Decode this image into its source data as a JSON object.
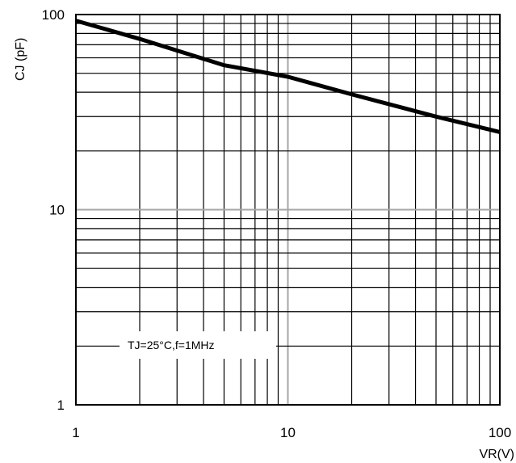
{
  "chart_data": {
    "type": "line",
    "xlabel": "VR(V)",
    "ylabel": "CJ (pF)",
    "x_scale": "log",
    "y_scale": "log",
    "xlim": [
      1,
      100
    ],
    "ylim": [
      1,
      100
    ],
    "x_ticks": [
      "1",
      "10",
      "100"
    ],
    "y_ticks": [
      "1",
      "10",
      "100"
    ],
    "grid": true,
    "annotation": "TJ=25°C,f=1MHz",
    "series": [
      {
        "x": [
          1,
          2,
          5,
          10,
          20,
          50,
          100
        ],
        "y": [
          93,
          75,
          55,
          48,
          39,
          30,
          25
        ]
      }
    ]
  }
}
